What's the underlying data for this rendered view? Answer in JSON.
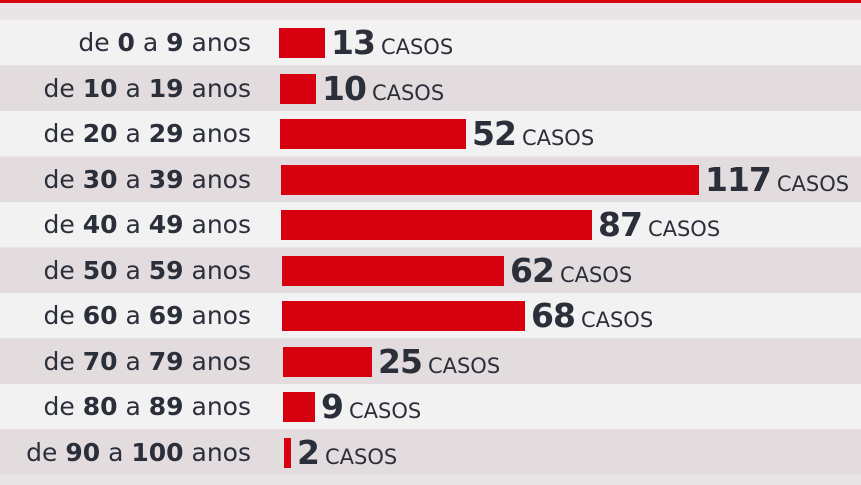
{
  "chart_data": {
    "type": "bar",
    "orientation": "horizontal",
    "categories": [
      "de 0 a 9 anos",
      "de 10 a 19 anos",
      "de 20 a 29 anos",
      "de 30 a 39 anos",
      "de 40 a 49 anos",
      "de 50 a 59 anos",
      "de 60 a 69 anos",
      "de 70 a 79 anos",
      "de 80 a 89 anos",
      "de 90 a 100 anos"
    ],
    "label_parts": [
      {
        "pre": "de ",
        "a": "0",
        "mid": " a ",
        "b": "9",
        "post": " anos"
      },
      {
        "pre": "de ",
        "a": "10",
        "mid": " a ",
        "b": "19",
        "post": " anos"
      },
      {
        "pre": "de ",
        "a": "20",
        "mid": " a ",
        "b": "29",
        "post": " anos"
      },
      {
        "pre": "de ",
        "a": "30",
        "mid": " a ",
        "b": "39",
        "post": " anos"
      },
      {
        "pre": "de ",
        "a": "40",
        "mid": " a ",
        "b": "49",
        "post": " anos"
      },
      {
        "pre": "de ",
        "a": "50",
        "mid": " a ",
        "b": "59",
        "post": " anos"
      },
      {
        "pre": "de ",
        "a": "60",
        "mid": " a ",
        "b": "69",
        "post": " anos"
      },
      {
        "pre": "de ",
        "a": "70",
        "mid": " a ",
        "b": "79",
        "post": " anos"
      },
      {
        "pre": "de ",
        "a": "80",
        "mid": " a ",
        "b": "89",
        "post": " anos"
      },
      {
        "pre": "de ",
        "a": "90",
        "mid": " a ",
        "b": "100",
        "post": " anos"
      }
    ],
    "values": [
      13,
      10,
      52,
      117,
      87,
      62,
      68,
      25,
      9,
      2
    ],
    "unit": "CASOS",
    "title": "",
    "xlabel": "",
    "ylabel": "",
    "xlim": [
      0,
      117
    ],
    "grid": false,
    "legend": "none",
    "bar_color": "#d7000f",
    "text_color": "#2b2f3a",
    "accent_line_color": "#d7000f"
  }
}
